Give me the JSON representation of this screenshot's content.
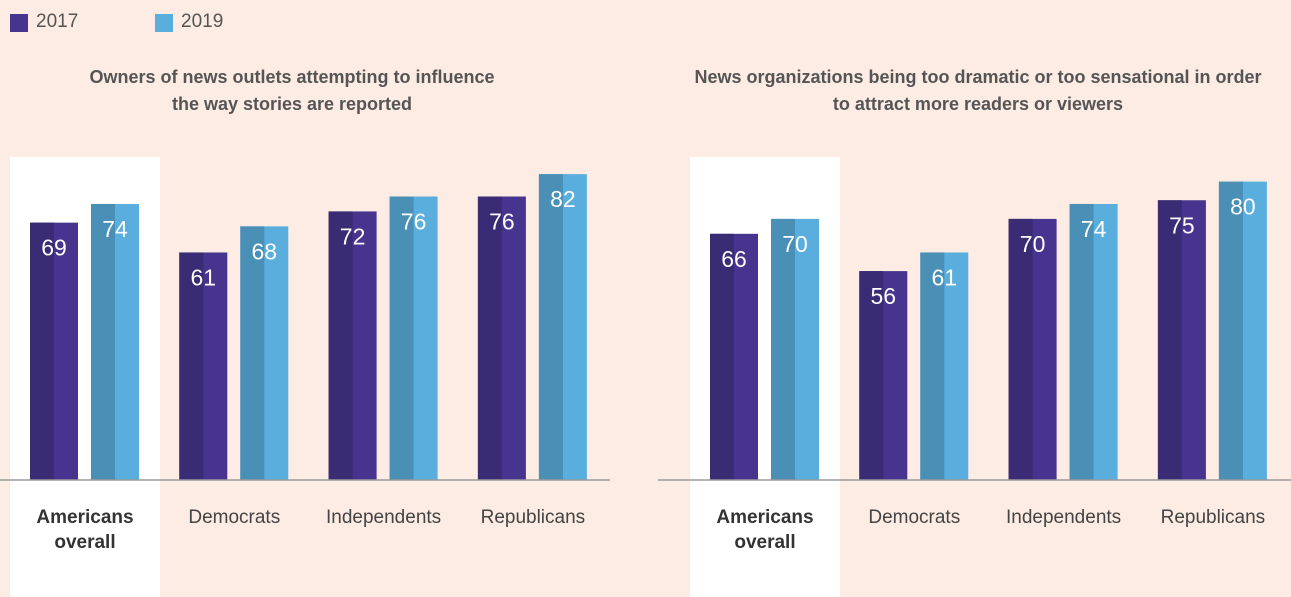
{
  "chart_data": [
    {
      "type": "bar",
      "title": "Owners of news outlets attempting to influence the way stories are reported",
      "categories": [
        "Americans overall",
        "Democrats",
        "Independents",
        "Republicans"
      ],
      "series": [
        {
          "name": "2017",
          "color": "#46348e",
          "values": [
            69,
            61,
            72,
            76
          ]
        },
        {
          "name": "2019",
          "color": "#5aaedd",
          "values": [
            74,
            68,
            76,
            82
          ]
        }
      ],
      "ylim": [
        0,
        100
      ]
    },
    {
      "type": "bar",
      "title": "News organizations being too dramatic or too sensational in order to attract more readers or viewers",
      "categories": [
        "Americans overall",
        "Democrats",
        "Independents",
        "Republicans"
      ],
      "series": [
        {
          "name": "2017",
          "color": "#46348e",
          "values": [
            66,
            56,
            70,
            75
          ]
        },
        {
          "name": "2019",
          "color": "#5aaedd",
          "values": [
            70,
            61,
            74,
            80
          ]
        }
      ],
      "ylim": [
        0,
        100
      ]
    }
  ]
}
